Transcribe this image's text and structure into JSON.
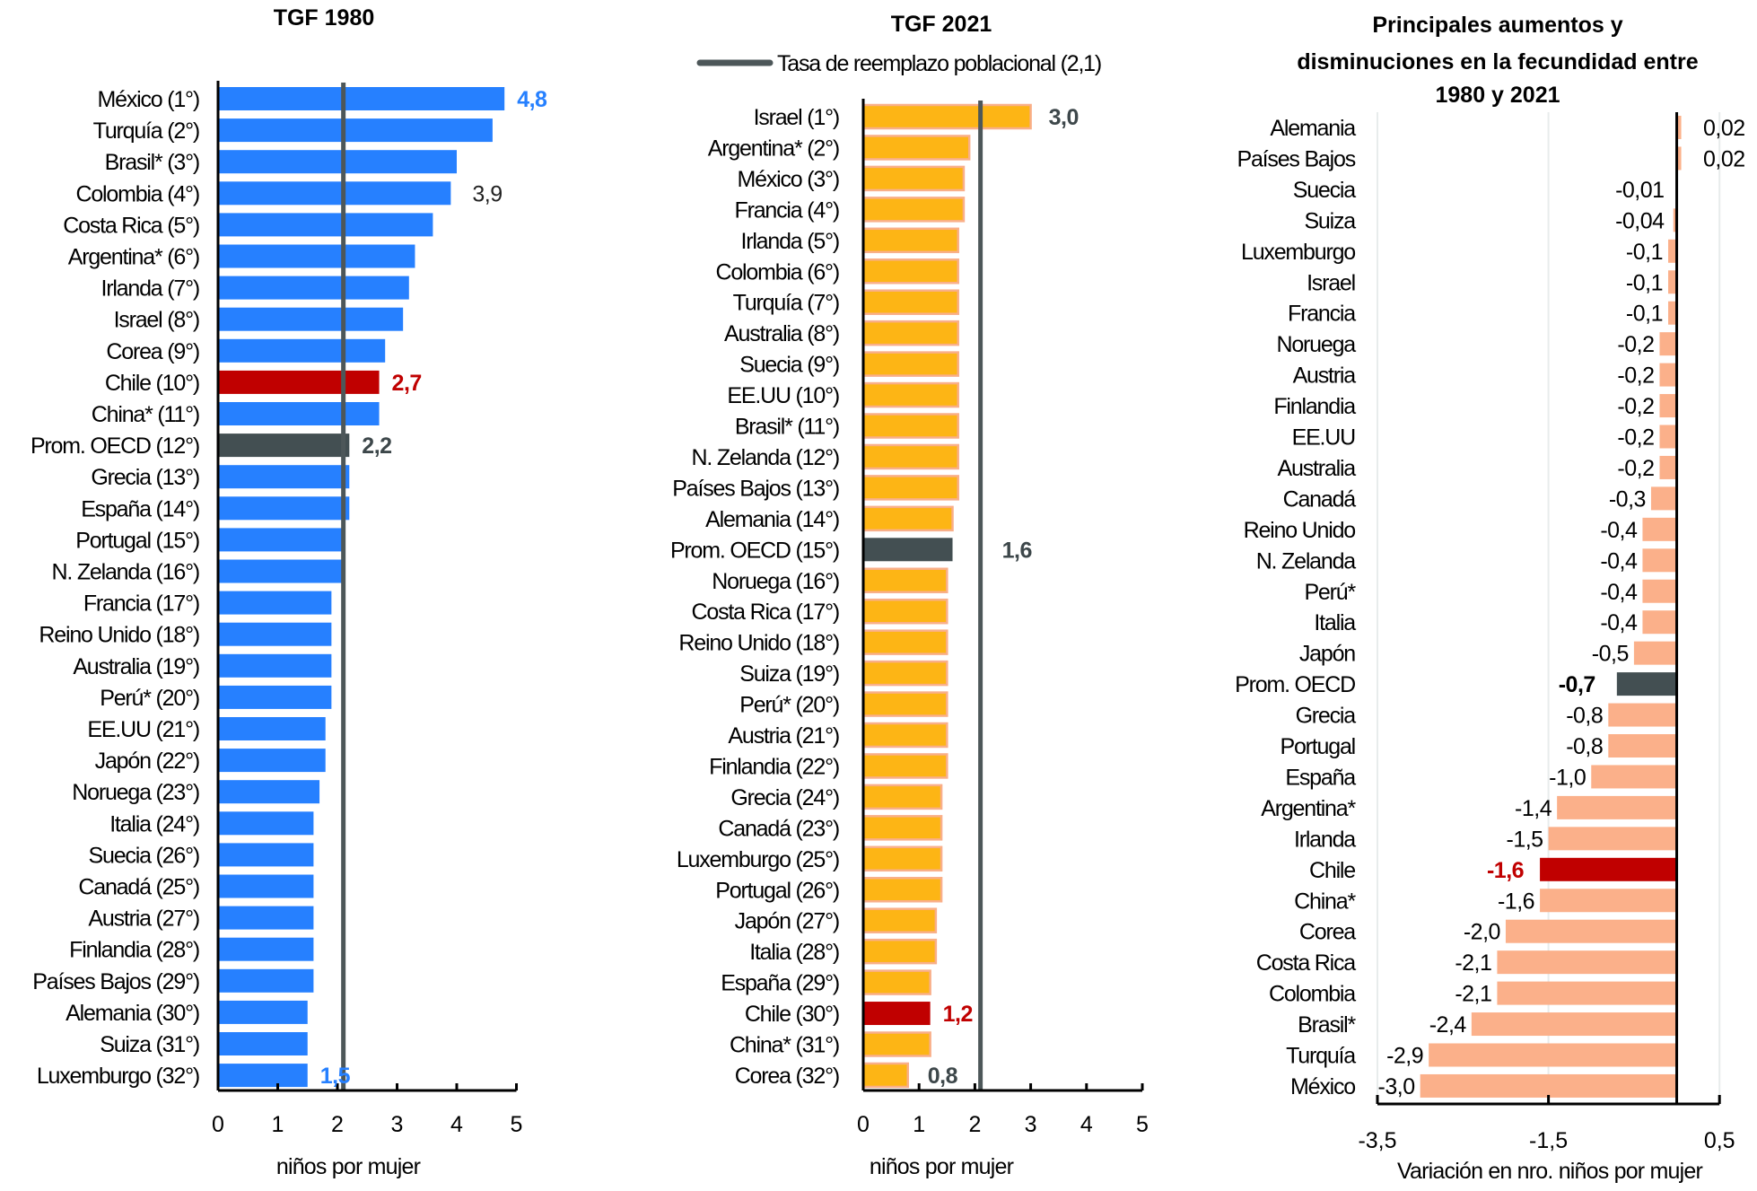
{
  "colors": {
    "blue": "#2680FF",
    "yellow": "#FDB515",
    "yellow_border": "#F9AF89",
    "peach": "#FBB08A",
    "chile_red": "#C00000",
    "oecd_gray": "#434F52",
    "refline": "#4D5759",
    "gridline": "#E8ECEC",
    "axis": "#000000",
    "label_dark": "#3D474A"
  },
  "chart_data": [
    {
      "type": "bar",
      "orientation": "horizontal",
      "title": "TGF 1980",
      "xlabel": "niños por mujer",
      "xlim": [
        0,
        5
      ],
      "xticks": [
        "0",
        "1",
        "2",
        "3",
        "4",
        "5"
      ],
      "xtick_values": [
        0,
        1,
        2,
        3,
        4,
        5
      ],
      "reference_line": 2.1,
      "categories": [
        "México (1°)",
        "Turquía (2°)",
        "Brasil* (3°)",
        "Colombia (4°)",
        "Costa Rica (5°)",
        "Argentina* (6°)",
        "Irlanda (7°)",
        "Israel (8°)",
        "Corea (9°)",
        "Chile (10°)",
        "China* (11°)",
        "Prom. OECD (12°)",
        "Grecia (13°)",
        "España (14°)",
        "Portugal (15°)",
        "N. Zelanda (16°)",
        "Francia (17°)",
        "Reino Unido (18°)",
        "Australia (19°)",
        "Perú* (20°)",
        "EE.UU (21°)",
        "Japón (22°)",
        "Noruega (23°)",
        "Italia (24°)",
        "Suecia (26°)",
        "Canadá (25°)",
        "Austria (27°)",
        "Finlandia (28°)",
        "Países Bajos (29°)",
        "Alemania (30°)",
        "Suiza (31°)",
        "Luxemburgo (32°)"
      ],
      "values": [
        4.8,
        4.6,
        4.0,
        3.9,
        3.6,
        3.3,
        3.2,
        3.1,
        2.8,
        2.7,
        2.7,
        2.2,
        2.2,
        2.2,
        2.1,
        2.1,
        1.9,
        1.9,
        1.9,
        1.9,
        1.8,
        1.8,
        1.7,
        1.6,
        1.6,
        1.6,
        1.6,
        1.6,
        1.6,
        1.5,
        1.5,
        1.5
      ],
      "highlights": {
        "Chile (10°)": "chile",
        "Prom. OECD (12°)": "oecd"
      },
      "data_labels": [
        {
          "index": 0,
          "text": "4,8",
          "style": "blue-bold"
        },
        {
          "index": 3,
          "text": "3,9",
          "style": "dark"
        },
        {
          "index": 9,
          "text": "2,7",
          "style": "red-bold"
        },
        {
          "index": 11,
          "text": "2,2",
          "style": "gray-bold"
        },
        {
          "index": 31,
          "text": "1,5",
          "style": "blue-bold"
        }
      ]
    },
    {
      "type": "bar",
      "orientation": "horizontal",
      "title": "TGF 2021",
      "legend": [
        {
          "label": "Tasa de reemplazo poblacional (2,1)",
          "marker": "line"
        }
      ],
      "legend_position": "top",
      "xlabel": "niños por mujer",
      "xlim": [
        0,
        5
      ],
      "xticks": [
        "0",
        "1",
        "2",
        "3",
        "4",
        "5"
      ],
      "xtick_values": [
        0,
        1,
        2,
        3,
        4,
        5
      ],
      "reference_line": 2.1,
      "categories": [
        "Israel (1°)",
        "Argentina* (2°)",
        "México (3°)",
        "Francia (4°)",
        "Irlanda (5°)",
        "Colombia (6°)",
        "Turquía (7°)",
        "Australia (8°)",
        "Suecia (9°)",
        "EE.UU (10°)",
        "Brasil* (11°)",
        "N. Zelanda (12°)",
        "Países Bajos (13°)",
        "Alemania (14°)",
        "Prom. OECD (15°)",
        "Noruega (16°)",
        "Costa Rica (17°)",
        "Reino Unido (18°)",
        "Suiza (19°)",
        "Perú* (20°)",
        "Austria (21°)",
        "Finlandia (22°)",
        "Grecia (24°)",
        "Canadá (23°)",
        "Luxemburgo (25°)",
        "Portugal (26°)",
        "Japón (27°)",
        "Italia (28°)",
        "España (29°)",
        "Chile (30°)",
        "China* (31°)",
        "Corea (32°)"
      ],
      "values": [
        3.0,
        1.9,
        1.8,
        1.8,
        1.7,
        1.7,
        1.7,
        1.7,
        1.7,
        1.7,
        1.7,
        1.7,
        1.7,
        1.6,
        1.6,
        1.5,
        1.5,
        1.5,
        1.5,
        1.5,
        1.5,
        1.5,
        1.4,
        1.4,
        1.4,
        1.4,
        1.3,
        1.3,
        1.2,
        1.2,
        1.2,
        0.8
      ],
      "highlights": {
        "Chile (30°)": "chile",
        "Prom. OECD (15°)": "oecd"
      },
      "data_labels": [
        {
          "index": 0,
          "text": "3,0",
          "style": "gray-bold"
        },
        {
          "index": 14,
          "text": "1,6",
          "style": "gray-bold-far"
        },
        {
          "index": 29,
          "text": "1,2",
          "style": "red-bold"
        },
        {
          "index": 31,
          "text": "0,8",
          "style": "gray-bold"
        }
      ]
    },
    {
      "type": "bar",
      "orientation": "horizontal",
      "title": [
        "Principales aumentos y",
        "disminuciones en la fecundidad entre",
        "1980 y 2021"
      ],
      "xlabel": "Variación en nro. niños por mujer",
      "xlim": [
        -3.5,
        0.5
      ],
      "xticks": [
        "-3,5",
        "-1,5",
        "0,5"
      ],
      "xtick_values": [
        -3.5,
        -1.5,
        0.5
      ],
      "grid": true,
      "categories": [
        "Alemania",
        "Países Bajos",
        "Suecia",
        "Suiza",
        "Luxemburgo",
        "Israel",
        "Francia",
        "Noruega",
        "Austria",
        "Finlandia",
        "EE.UU",
        "Australia",
        "Canadá",
        "Reino Unido",
        "N. Zelanda",
        "Perú*",
        "Italia",
        "Japón",
        "Prom. OECD",
        "Grecia",
        "Portugal",
        "España",
        "Argentina*",
        "Irlanda",
        "Chile",
        "China*",
        "Corea",
        "Costa Rica",
        "Colombia",
        "Brasil*",
        "Turquía",
        "México"
      ],
      "values": [
        0.02,
        0.02,
        -0.01,
        -0.04,
        -0.1,
        -0.1,
        -0.1,
        -0.2,
        -0.2,
        -0.2,
        -0.2,
        -0.2,
        -0.3,
        -0.4,
        -0.4,
        -0.4,
        -0.4,
        -0.5,
        -0.7,
        -0.8,
        -0.8,
        -1.0,
        -1.4,
        -1.5,
        -1.6,
        -1.6,
        -2.0,
        -2.1,
        -2.1,
        -2.4,
        -2.9,
        -3.0
      ],
      "value_labels": [
        "0,02",
        "0,02",
        "-0,01",
        "-0,04",
        "-0,1",
        "-0,1",
        "-0,1",
        "-0,2",
        "-0,2",
        "-0,2",
        "-0,2",
        "-0,2",
        "-0,3",
        "-0,4",
        "-0,4",
        "-0,4",
        "-0,4",
        "-0,5",
        "-0,7",
        "-0,8",
        "-0,8",
        "-1,0",
        "-1,4",
        "-1,5",
        "-1,6",
        "-1,6",
        "-2,0",
        "-2,1",
        "-2,1",
        "-2,4",
        "-2,9",
        "-3,0"
      ],
      "highlights": {
        "Chile": "chile",
        "Prom. OECD": "oecd"
      }
    }
  ]
}
